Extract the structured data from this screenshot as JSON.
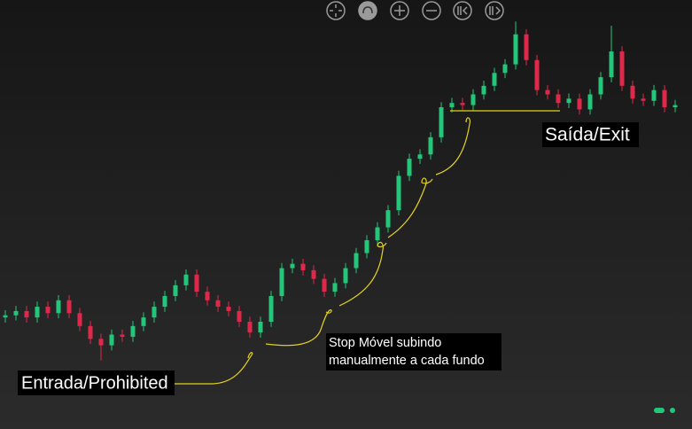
{
  "chart_data": {
    "type": "candlestick",
    "ylim": [
      0,
      100
    ],
    "up_color": "#22c77a",
    "down_color": "#e0294a",
    "open": [
      26,
      26.5,
      27.5,
      26,
      28.5,
      27,
      30,
      27,
      24,
      21,
      19.5,
      22,
      21.5,
      24,
      26,
      28.5,
      31,
      33.5,
      36,
      32,
      30,
      28.5,
      27.5,
      25,
      22.5,
      25,
      31,
      37.5,
      38.5,
      37,
      35,
      32,
      34,
      37.5,
      41,
      44,
      47,
      51,
      59,
      63,
      64,
      68,
      75,
      76,
      75.5,
      78,
      80,
      83,
      85,
      92,
      86,
      79,
      78,
      76,
      77,
      74.5,
      78,
      82,
      88,
      80,
      77,
      76.5,
      79,
      75
    ],
    "high": [
      27.7,
      28.7,
      28.7,
      29.7,
      29.7,
      31.2,
      31.2,
      28.2,
      25.2,
      22.2,
      23.2,
      23.2,
      25.2,
      27.2,
      29.7,
      32.2,
      34.7,
      37.2,
      37.2,
      33.2,
      31.2,
      29.7,
      28.7,
      26.2,
      26.2,
      32.2,
      38.7,
      39.7,
      39.7,
      38.2,
      36.2,
      35.2,
      38.7,
      42.2,
      45.2,
      48.2,
      52.2,
      60.2,
      64.2,
      65.2,
      69.2,
      76.2,
      77.2,
      77.2,
      79.2,
      81.2,
      84.2,
      86.2,
      95,
      93.2,
      87.2,
      80.2,
      79.2,
      78.2,
      78.2,
      79.2,
      83.2,
      94,
      89.2,
      81.2,
      78.2,
      80.2,
      80.2,
      76.7
    ],
    "low": [
      24.8,
      25.3,
      24.8,
      24.8,
      25.8,
      25.8,
      25.8,
      22.8,
      19.8,
      16,
      18.3,
      20.3,
      20.3,
      22.8,
      24.8,
      27.3,
      29.8,
      32.3,
      30.8,
      28.8,
      27.3,
      26.3,
      23.8,
      21.3,
      21.3,
      23.8,
      29.8,
      36.3,
      35.8,
      33.8,
      30.8,
      30.8,
      32.8,
      36.3,
      39.8,
      42.8,
      45.8,
      49.8,
      57.8,
      61.8,
      62.8,
      66.8,
      73.8,
      74.3,
      74.3,
      76.8,
      78.8,
      81.8,
      83.8,
      84.8,
      77.8,
      76.8,
      74.8,
      74.8,
      73.3,
      73.3,
      76.8,
      80.8,
      78.8,
      75.8,
      75.3,
      75.3,
      73.8,
      73.8
    ],
    "close": [
      26.5,
      27.5,
      26,
      28.5,
      27,
      30,
      27,
      24,
      21,
      19.5,
      22,
      21.5,
      24,
      26,
      28.5,
      31,
      33.5,
      36,
      32,
      30,
      28.5,
      27.5,
      25,
      22.5,
      25,
      31,
      37.5,
      38.5,
      37,
      35,
      32,
      34,
      37.5,
      41,
      44,
      47,
      51,
      59,
      63,
      64,
      68,
      75,
      76,
      75.5,
      78,
      80,
      83,
      85,
      92,
      86,
      79,
      78,
      76,
      77,
      74.5,
      78,
      82,
      88,
      80,
      77,
      76.5,
      79,
      75,
      75.5
    ]
  },
  "annotations": {
    "entry": "Entrada/Prohibited",
    "stop": [
      "Stop Móvel subindo",
      "manualmente a cada fundo"
    ],
    "exit": "Saída/Exit"
  }
}
